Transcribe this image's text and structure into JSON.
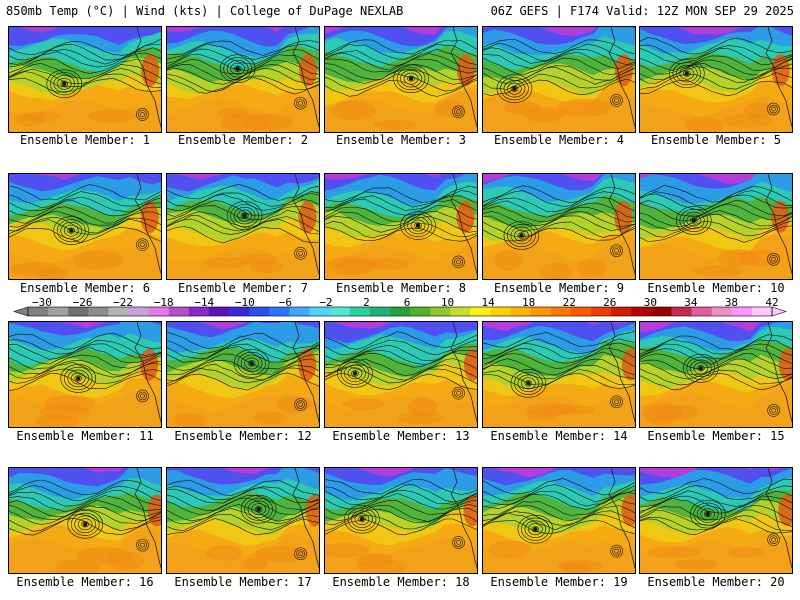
{
  "header": {
    "left": "850mb Temp (°C) | Wind (kts) | College of DuPage NEXLAB",
    "right": "06Z GEFS | F174 Valid: 12Z MON SEP 29 2025"
  },
  "colorbar": {
    "labels": [
      "-30",
      "-26",
      "-22",
      "-18",
      "-14",
      "-10",
      "-6",
      "-2",
      "2",
      "6",
      "10",
      "14",
      "18",
      "22",
      "26",
      "30",
      "34",
      "38",
      "42"
    ],
    "colors": [
      "#808080",
      "#a0a0a0",
      "#707070",
      "#8c8c8c",
      "#b4b4b4",
      "#c8a0dc",
      "#e678e6",
      "#b450c8",
      "#8c28c8",
      "#5a14b4",
      "#3c28dc",
      "#2850f0",
      "#2878ff",
      "#3caaff",
      "#50d2ff",
      "#50e6d2",
      "#28d2a0",
      "#1eb478",
      "#28a03c",
      "#50b428",
      "#8cc828",
      "#c8dc28",
      "#fff014",
      "#ffd200",
      "#ffb400",
      "#ff9600",
      "#ff7800",
      "#ff5a00",
      "#f03c00",
      "#d21e00",
      "#b40000",
      "#960000",
      "#c82850",
      "#e65aa0",
      "#f08cc8",
      "#ff96ff",
      "#ffc8ff"
    ]
  },
  "members": [
    {
      "label": "Ensemble Member: 1"
    },
    {
      "label": "Ensemble Member: 2"
    },
    {
      "label": "Ensemble Member: 3"
    },
    {
      "label": "Ensemble Member: 4"
    },
    {
      "label": "Ensemble Member: 5"
    },
    {
      "label": "Ensemble Member: 6"
    },
    {
      "label": "Ensemble Member: 7"
    },
    {
      "label": "Ensemble Member: 8"
    },
    {
      "label": "Ensemble Member: 9"
    },
    {
      "label": "Ensemble Member: 10"
    },
    {
      "label": "Ensemble Member: 11"
    },
    {
      "label": "Ensemble Member: 12"
    },
    {
      "label": "Ensemble Member: 13"
    },
    {
      "label": "Ensemble Member: 14"
    },
    {
      "label": "Ensemble Member: 15"
    },
    {
      "label": "Ensemble Member: 16"
    },
    {
      "label": "Ensemble Member: 17"
    },
    {
      "label": "Ensemble Member: 18"
    },
    {
      "label": "Ensemble Member: 19"
    },
    {
      "label": "Ensemble Member: 20"
    }
  ]
}
